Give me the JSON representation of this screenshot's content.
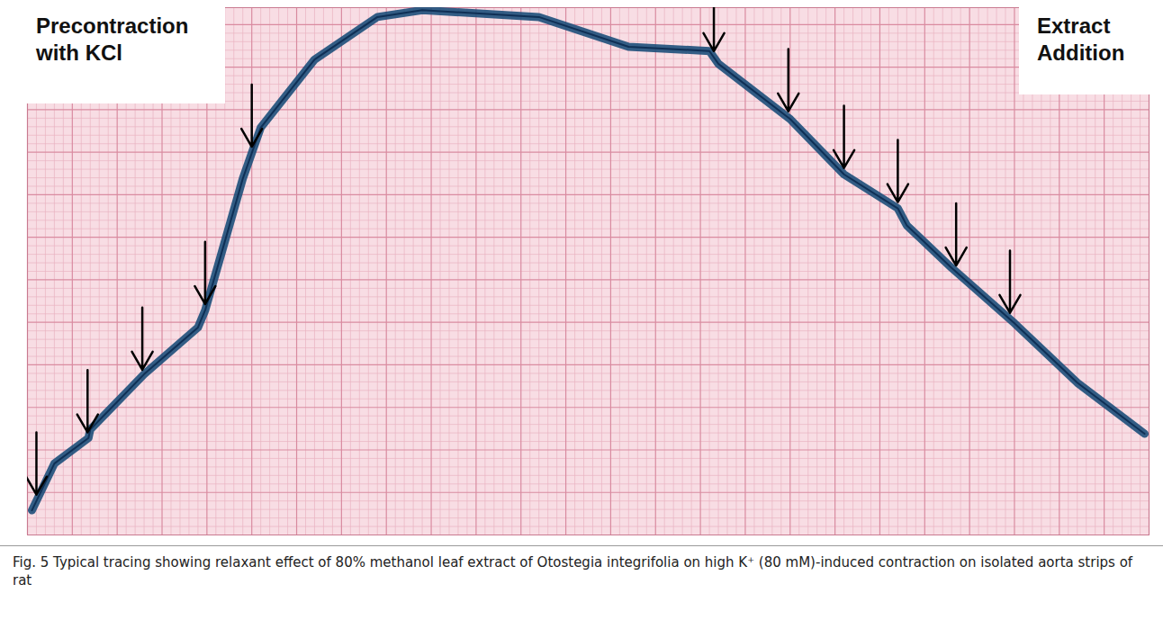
{
  "chart_data": {
    "type": "line",
    "x": [
      0.5,
      3,
      6.8,
      7,
      13,
      19,
      19.8,
      24,
      26,
      32,
      39,
      44,
      57,
      67,
      76,
      77,
      85,
      91,
      97,
      98,
      103,
      110,
      117,
      124.5
    ],
    "values": [
      2.9,
      8.4,
      11.4,
      12.4,
      18.9,
      24.4,
      26.4,
      41.9,
      47.9,
      55.9,
      60.9,
      61.7,
      60.9,
      57.4,
      56.9,
      55.4,
      48.9,
      42.4,
      38.4,
      36.4,
      31.4,
      24.9,
      17.9,
      11.9
    ],
    "color": "#1d4f7a",
    "xlim": [
      0,
      125
    ],
    "ylim": [
      0,
      62
    ],
    "xticks": [
      0,
      5,
      10,
      15,
      20,
      25,
      30,
      35,
      40,
      45,
      50,
      55,
      60,
      65,
      70,
      75,
      80,
      85,
      90,
      95,
      100,
      105,
      110,
      115,
      120,
      125
    ],
    "yticks": [
      0,
      5,
      10,
      15,
      20,
      25,
      30,
      35,
      40,
      45,
      50,
      55,
      60
    ],
    "grid": true,
    "tick_labels": false,
    "annotations": [
      {
        "text": "Precontraction with KCl",
        "arrows_x": [
          1,
          6.7,
          12.8,
          19.8,
          25
        ]
      },
      {
        "text": "Extract Addition",
        "arrows_x": [
          76.5,
          84.8,
          91,
          97,
          103.5,
          109.5
        ]
      }
    ],
    "caption": "Fig. 5 Typical tracing showing relaxant effect of 80% methanol leaf extract of Otostegia integrifolia on high K⁺ (80 mM)-induced contraction on isolated aorta strips of rat"
  }
}
